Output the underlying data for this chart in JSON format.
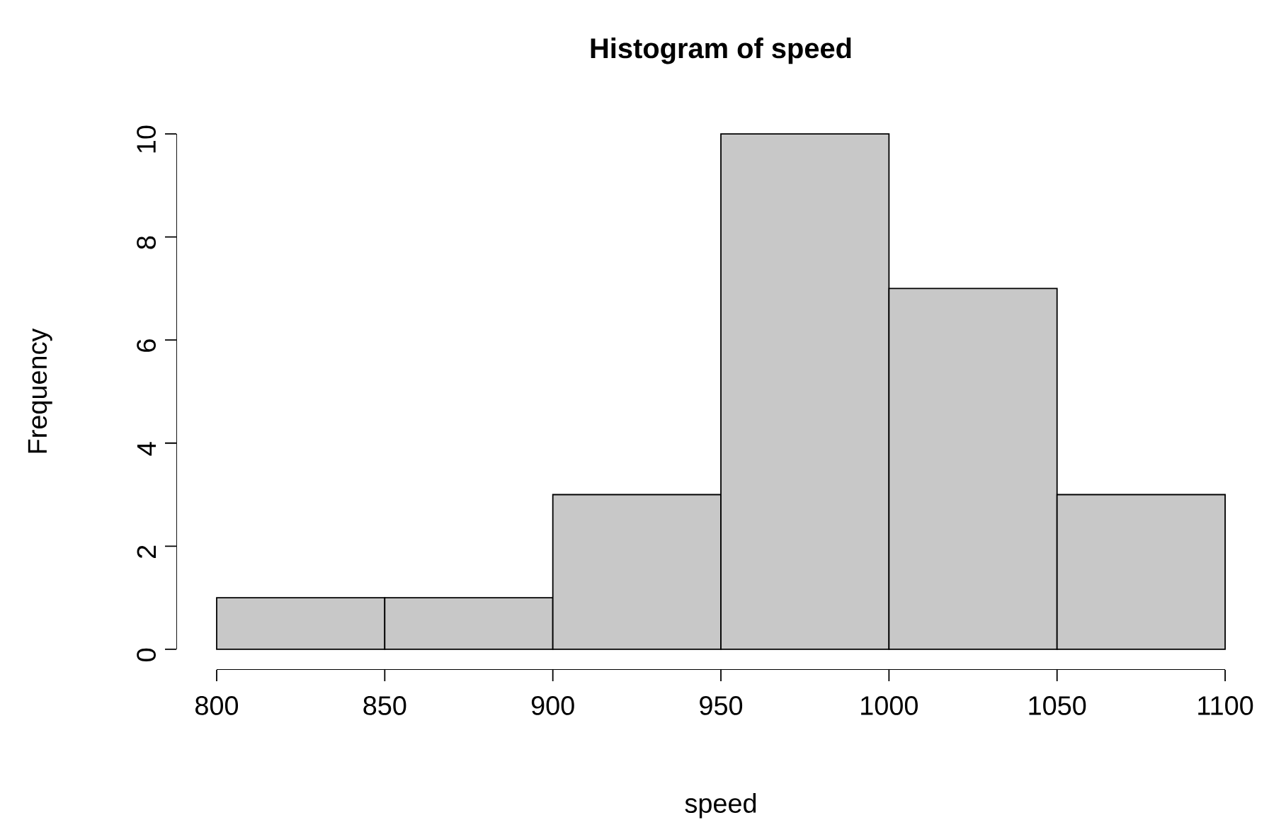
{
  "chart_data": {
    "type": "histogram",
    "title": "Histogram of speed",
    "xlabel": "speed",
    "ylabel": "Frequency",
    "bins": [
      800,
      850,
      900,
      950,
      1000,
      1050,
      1100
    ],
    "values": [
      1,
      1,
      3,
      10,
      7,
      3
    ],
    "color": "#c8c8c8",
    "xlim": [
      800,
      1100
    ],
    "ylim": [
      0,
      10
    ],
    "xticks": [
      800,
      850,
      900,
      950,
      1000,
      1050,
      1100
    ],
    "yticks": [
      0,
      2,
      4,
      6,
      8,
      10
    ]
  }
}
